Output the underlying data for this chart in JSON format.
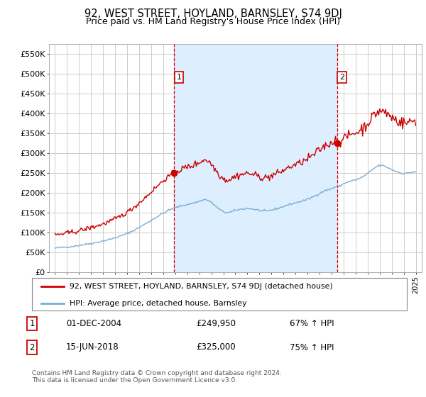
{
  "title": "92, WEST STREET, HOYLAND, BARNSLEY, S74 9DJ",
  "subtitle": "Price paid vs. HM Land Registry's House Price Index (HPI)",
  "legend_line1": "92, WEST STREET, HOYLAND, BARNSLEY, S74 9DJ (detached house)",
  "legend_line2": "HPI: Average price, detached house, Barnsley",
  "transaction1_date": "01-DEC-2004",
  "transaction1_price": "£249,950",
  "transaction1_hpi": "67% ↑ HPI",
  "transaction2_date": "15-JUN-2018",
  "transaction2_price": "£325,000",
  "transaction2_hpi": "75% ↑ HPI",
  "footer": "Contains HM Land Registry data © Crown copyright and database right 2024.\nThis data is licensed under the Open Government Licence v3.0.",
  "red_color": "#cc0000",
  "blue_color": "#7bafd4",
  "fill_color": "#ddeeff",
  "grid_color": "#cccccc",
  "bg_color": "#ffffff",
  "plot_bg_color": "#ffffff",
  "ylim": [
    0,
    575000
  ],
  "yticks": [
    0,
    50000,
    100000,
    150000,
    200000,
    250000,
    300000,
    350000,
    400000,
    450000,
    500000,
    550000
  ],
  "transaction1_x": 2004.917,
  "transaction1_y": 249950,
  "transaction2_x": 2018.458,
  "transaction2_y": 325000,
  "xlim_start": 1994.5,
  "xlim_end": 2025.5
}
